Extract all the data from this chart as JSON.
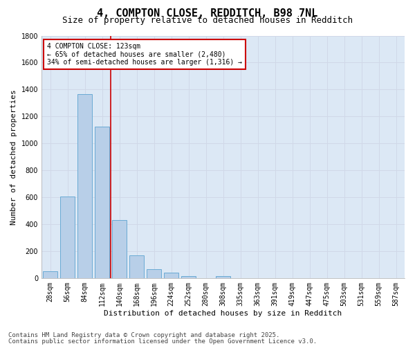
{
  "title_line1": "4, COMPTON CLOSE, REDDITCH, B98 7NL",
  "title_line2": "Size of property relative to detached houses in Redditch",
  "xlabel": "Distribution of detached houses by size in Redditch",
  "ylabel": "Number of detached properties",
  "categories": [
    "28sqm",
    "56sqm",
    "84sqm",
    "112sqm",
    "140sqm",
    "168sqm",
    "196sqm",
    "224sqm",
    "252sqm",
    "280sqm",
    "308sqm",
    "335sqm",
    "363sqm",
    "391sqm",
    "419sqm",
    "447sqm",
    "475sqm",
    "503sqm",
    "531sqm",
    "559sqm",
    "587sqm"
  ],
  "values": [
    50,
    605,
    1365,
    1125,
    430,
    170,
    65,
    40,
    15,
    0,
    15,
    0,
    0,
    0,
    0,
    0,
    0,
    0,
    0,
    0,
    0
  ],
  "bar_color": "#b8cfe8",
  "bar_edge_color": "#6aaad4",
  "annotation_text_line1": "4 COMPTON CLOSE: 123sqm",
  "annotation_text_line2": "← 65% of detached houses are smaller (2,480)",
  "annotation_text_line3": "34% of semi-detached houses are larger (1,316) →",
  "annotation_box_facecolor": "#ffffff",
  "annotation_box_edgecolor": "#cc0000",
  "vline_color": "#cc0000",
  "ylim": [
    0,
    1800
  ],
  "yticks": [
    0,
    200,
    400,
    600,
    800,
    1000,
    1200,
    1400,
    1600,
    1800
  ],
  "grid_color": "#d0d8e8",
  "plot_bg_color": "#dce8f5",
  "fig_bg_color": "#ffffff",
  "footnote_line1": "Contains HM Land Registry data © Crown copyright and database right 2025.",
  "footnote_line2": "Contains public sector information licensed under the Open Government Licence v3.0.",
  "title_fontsize": 11,
  "subtitle_fontsize": 9,
  "axis_label_fontsize": 8,
  "tick_fontsize": 7,
  "annotation_fontsize": 7,
  "footnote_fontsize": 6.5
}
